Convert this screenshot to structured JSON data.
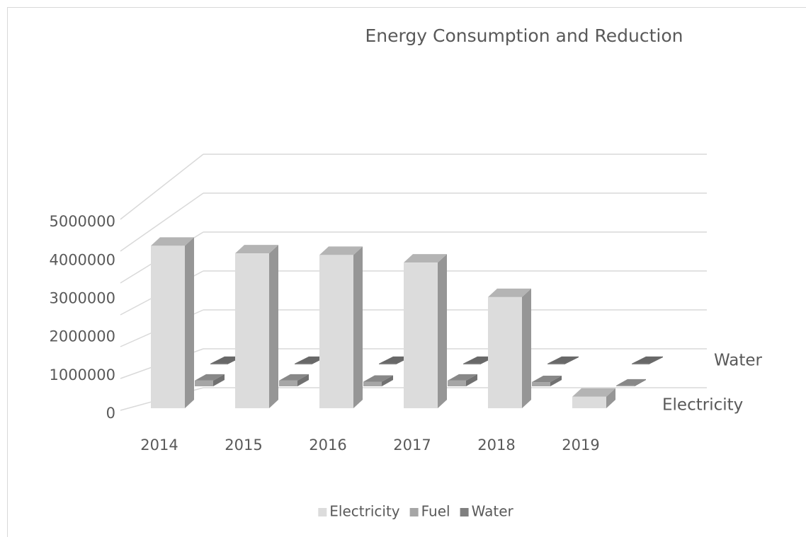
{
  "chart_data": {
    "type": "bar3d",
    "title": "Energy Consumption and Reduction",
    "categories": [
      "2014",
      "2015",
      "2016",
      "2017",
      "2018",
      "2019"
    ],
    "series": [
      {
        "name": "Electricity",
        "color": "#dcdcdc",
        "values": [
          4240000,
          4040000,
          4000000,
          3800000,
          2900000,
          300000
        ]
      },
      {
        "name": "Fuel",
        "color": "#a6a6a6",
        "values": [
          150000,
          150000,
          120000,
          150000,
          110000,
          20000
        ]
      },
      {
        "name": "Water",
        "color": "#7f7f7f",
        "values": [
          20000,
          20000,
          20000,
          20000,
          20000,
          20000
        ]
      }
    ],
    "depth_labels": [
      "chart_data.series.2.name",
      "chart_data.series.0.name"
    ],
    "ylim": [
      0,
      6000000
    ],
    "yticks": [
      0,
      1000000,
      2000000,
      3000000,
      4000000,
      5000000
    ],
    "grid": true,
    "legend": "bottom"
  }
}
